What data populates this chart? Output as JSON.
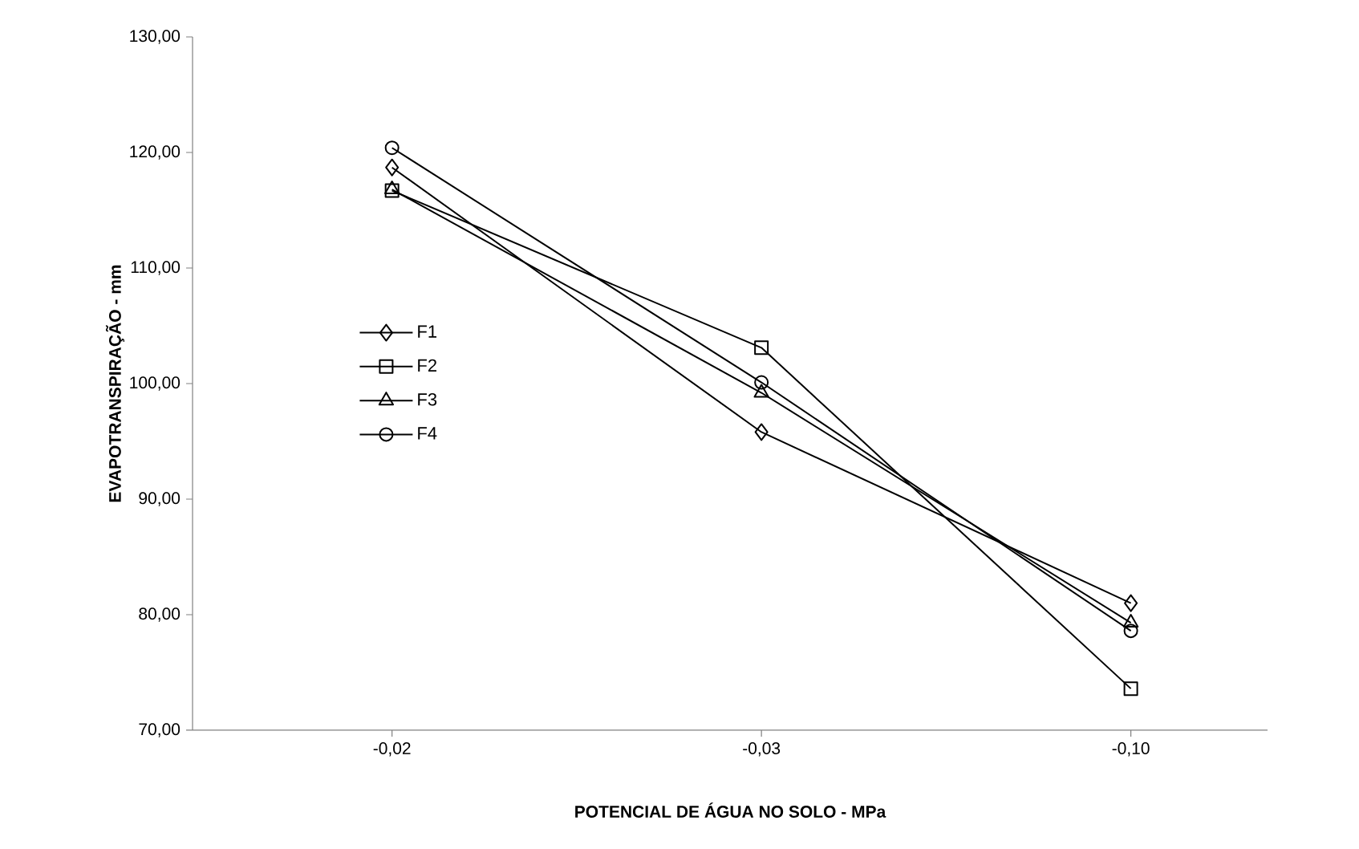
{
  "chart_data": {
    "type": "line",
    "xlabel": "POTENCIAL DE ÁGUA NO SOLO - MPa",
    "ylabel": "EVAPOTRANSPIRAÇÃO - mm",
    "categories": [
      "-0,02",
      "-0,03",
      "-0,10"
    ],
    "ylim": [
      70,
      130
    ],
    "yticks": [
      {
        "value": 70,
        "label": "70,00"
      },
      {
        "value": 80,
        "label": "80,00"
      },
      {
        "value": 90,
        "label": "90,00"
      },
      {
        "value": 100,
        "label": "100,00"
      },
      {
        "value": 110,
        "label": "110,00"
      },
      {
        "value": 120,
        "label": "120,00"
      },
      {
        "value": 130,
        "label": "130,00"
      }
    ],
    "grid": false,
    "legend": "left",
    "line_style": "solid",
    "series": [
      {
        "name": "F1",
        "color": "#000000",
        "marker": "diamond",
        "values": [
          118.7,
          95.8,
          81.0
        ]
      },
      {
        "name": "F2",
        "color": "#000000",
        "marker": "square",
        "values": [
          116.7,
          103.1,
          73.6
        ]
      },
      {
        "name": "F3",
        "color": "#000000",
        "marker": "triangle",
        "values": [
          116.8,
          99.2,
          79.3
        ]
      },
      {
        "name": "F4",
        "color": "#000000",
        "marker": "circle",
        "values": [
          120.4,
          100.1,
          78.6
        ]
      }
    ]
  }
}
